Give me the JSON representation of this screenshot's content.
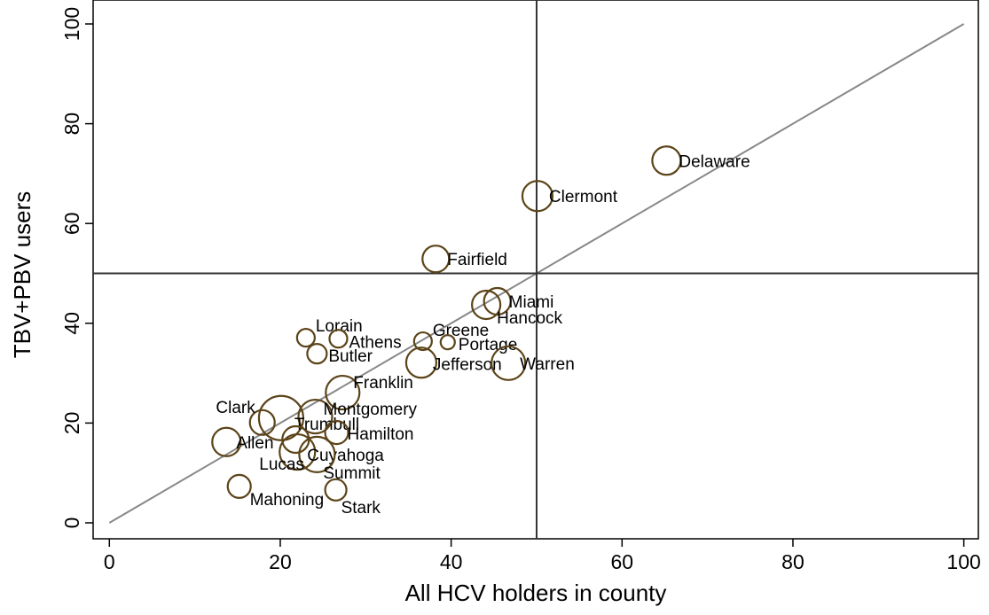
{
  "chart_data": {
    "type": "scatter",
    "xlabel": "All HCV holders in county",
    "ylabel": "TBV+PBV users",
    "xlim": [
      -1.9,
      101.7
    ],
    "ylim": [
      -3.2,
      104.8
    ],
    "xticks": [
      0,
      20,
      40,
      60,
      80,
      100
    ],
    "yticks": [
      0,
      20,
      40,
      60,
      80,
      100
    ],
    "vline": 50,
    "hline": 50,
    "diagonal": [
      0,
      100
    ],
    "color": "#5c4419",
    "line_color": "#888888",
    "series": [
      {
        "labels": [
          "Delaware",
          "Clermont",
          "Fairfield",
          "Miami",
          "Hancock",
          "Lorain",
          "Athens",
          "Greene",
          "Portage",
          "Butler",
          "Jefferson",
          "Warren",
          "Franklin",
          "Clark",
          "Montgomery",
          "Trumbull",
          "Hamilton",
          "Allen",
          "Cuyahoga",
          "Summit",
          "Lucas",
          "Mahoning",
          "Stark"
        ],
        "x": [
          65.2,
          50.1,
          38.2,
          45.4,
          44.1,
          23.0,
          26.8,
          36.7,
          39.6,
          24.3,
          36.5,
          46.7,
          27.3,
          17.9,
          24.1,
          20.1,
          26.6,
          13.7,
          22.0,
          24.3,
          21.8,
          15.2,
          26.5
        ],
        "values": [
          72.6,
          65.5,
          52.9,
          44.4,
          43.7,
          37.1,
          36.9,
          36.4,
          36.2,
          33.9,
          32.1,
          32.0,
          26.1,
          20.1,
          21.3,
          21.0,
          18.1,
          16.2,
          14.2,
          13.7,
          16.7,
          7.3,
          6.6
        ],
        "sizes": [
          16,
          17,
          15,
          15,
          16,
          10,
          10,
          10,
          8,
          11,
          17,
          19,
          19,
          14,
          19,
          25,
          13,
          16,
          20,
          20,
          15,
          13,
          12
        ]
      }
    ]
  }
}
